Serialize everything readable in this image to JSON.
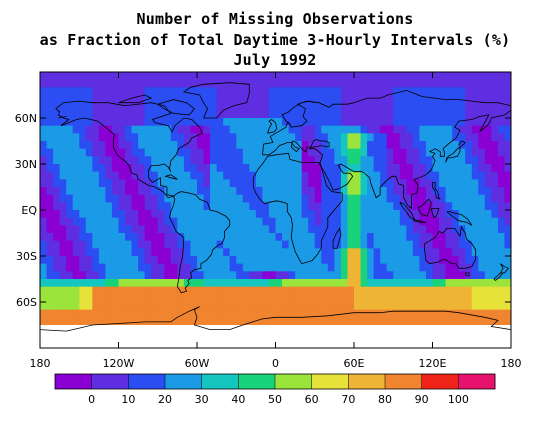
{
  "title_lines": [
    "Number of Missing Observations",
    "as Fraction of Total Daytime 3-Hourly Intervals (%)",
    "July 1992"
  ],
  "map": {
    "projection": "equirectangular",
    "lon_range": [
      -180,
      180
    ],
    "lat_range": [
      -90,
      90
    ],
    "lat_ticks": [
      {
        "lat": 60,
        "label": "60N"
      },
      {
        "lat": 30,
        "label": "30N"
      },
      {
        "lat": 0,
        "label": "EQ"
      },
      {
        "lat": -30,
        "label": "30S"
      },
      {
        "lat": -60,
        "label": "60S"
      }
    ],
    "lon_ticks": [
      {
        "lon": -180,
        "label": "180"
      },
      {
        "lon": -120,
        "label": "120W"
      },
      {
        "lon": -60,
        "label": "60W"
      },
      {
        "lon": 0,
        "label": "0"
      },
      {
        "lon": 60,
        "label": "60E"
      },
      {
        "lon": 120,
        "label": "120E"
      },
      {
        "lon": 180,
        "label": "180"
      }
    ]
  },
  "colorbar": {
    "colors": [
      "#8a00d4",
      "#5f2ee0",
      "#2a4ef2",
      "#1b9ae6",
      "#15c6c0",
      "#19d27a",
      "#9be43c",
      "#e6e23a",
      "#eeb434",
      "#f0842f",
      "#ef2418",
      "#e6126e"
    ],
    "labels": [
      "0",
      "10",
      "20",
      "30",
      "40",
      "50",
      "60",
      "70",
      "80",
      "90",
      "100"
    ],
    "units": "%"
  }
}
